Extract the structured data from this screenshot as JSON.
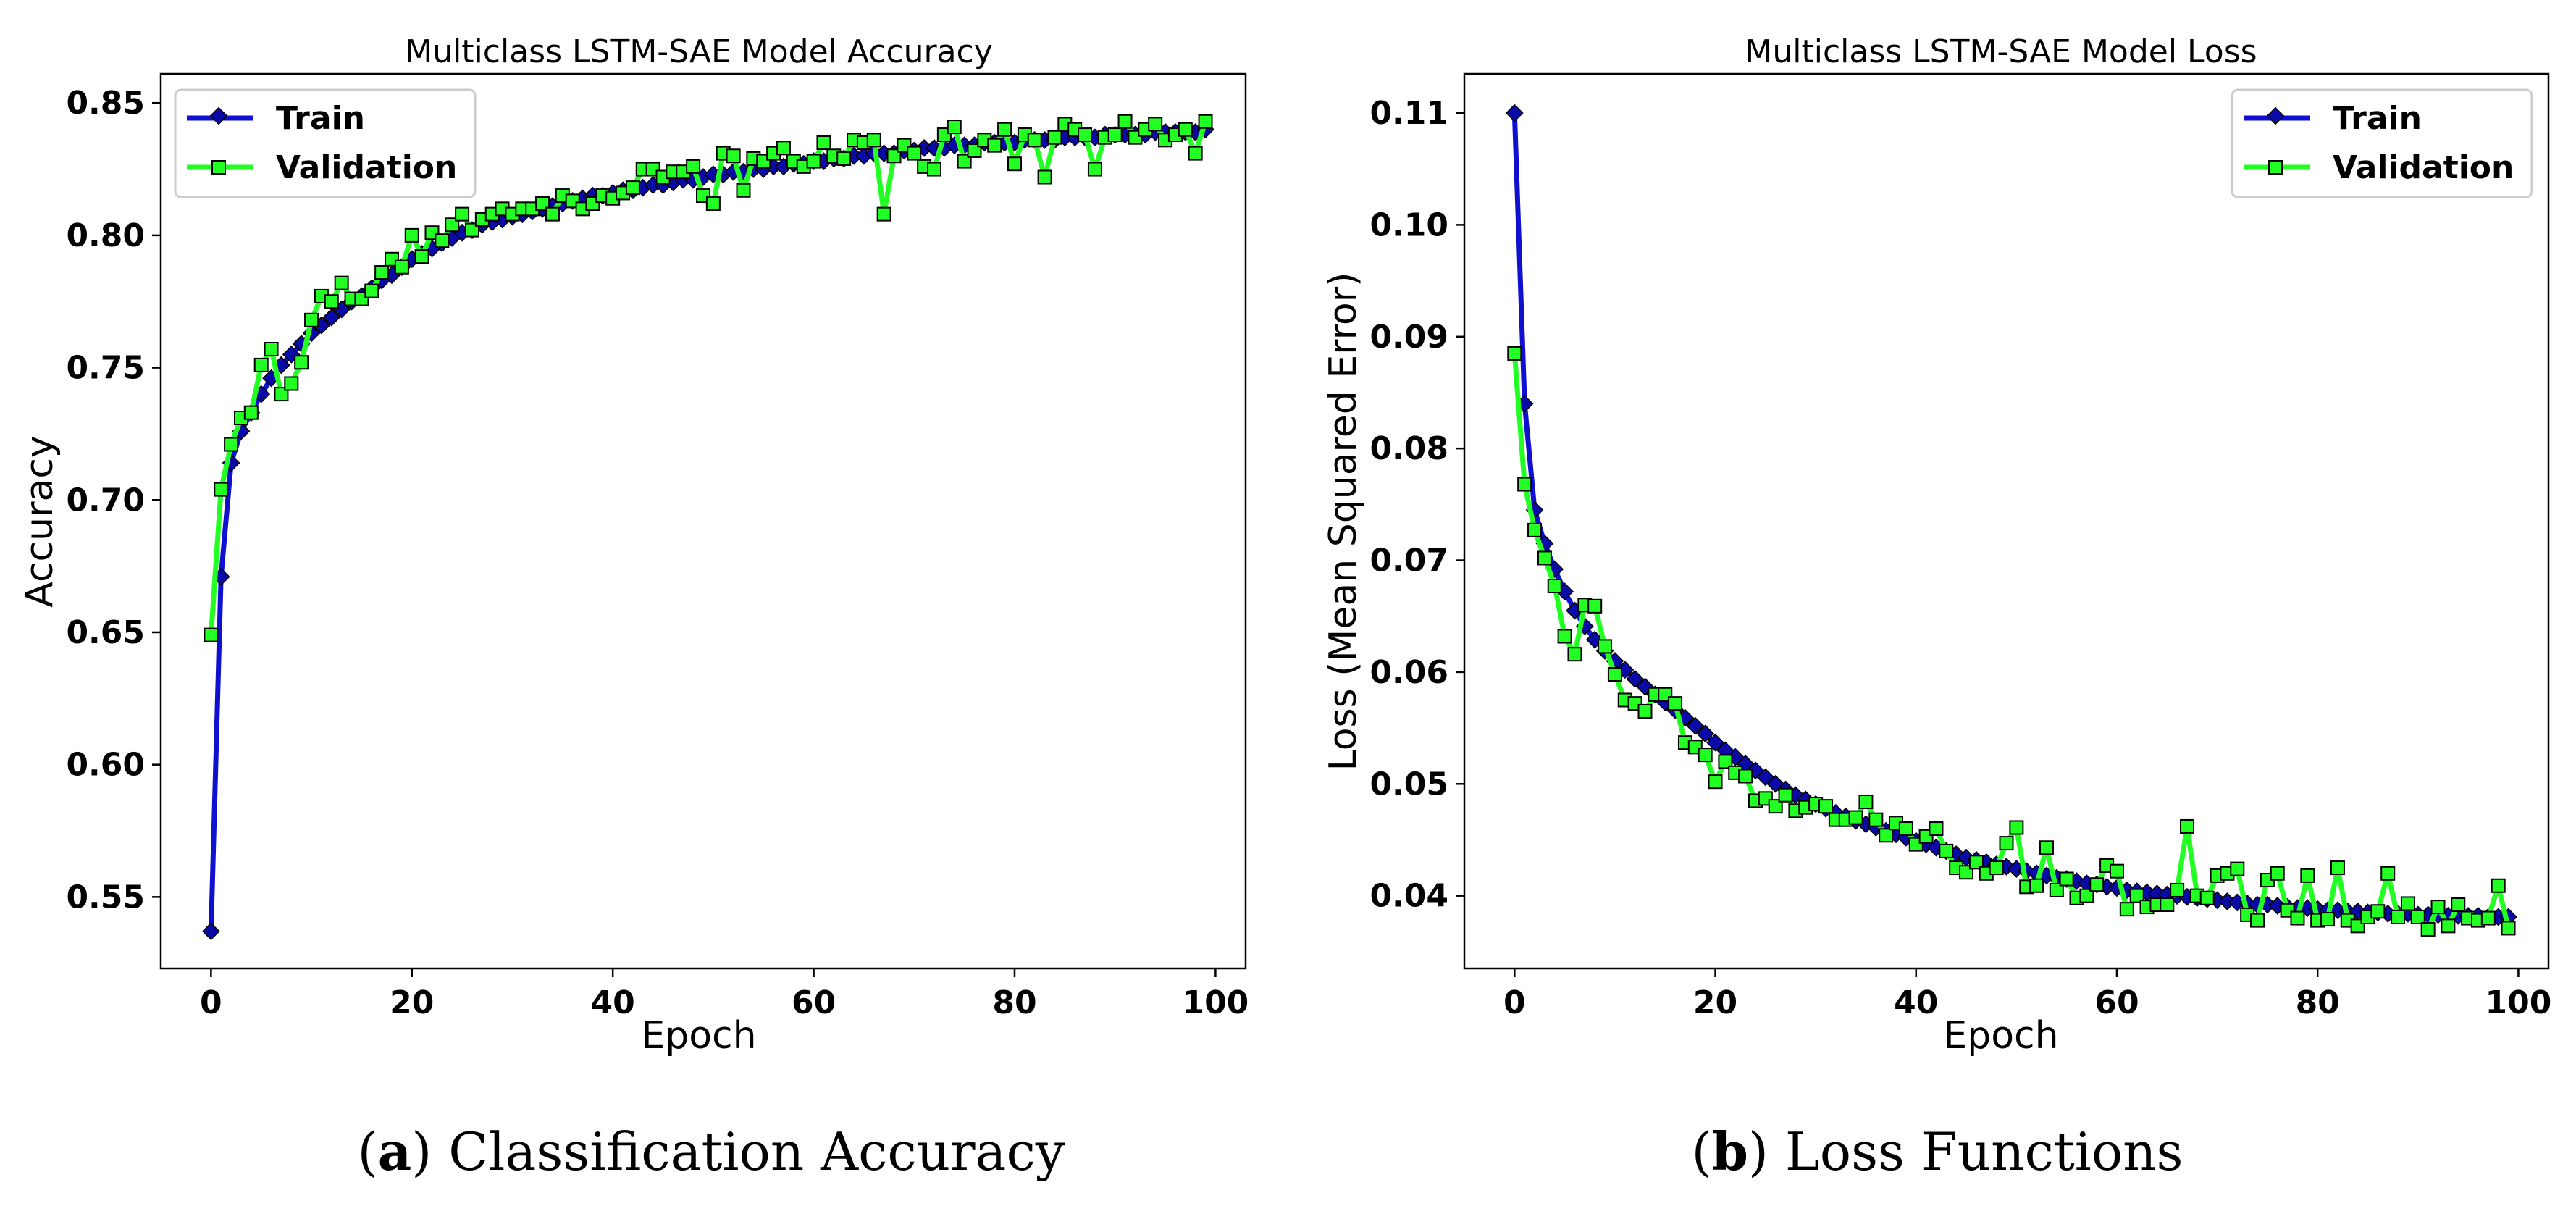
{
  "colors": {
    "train": "#1010d0",
    "train_marker": "#0a0aa8",
    "validation": "#22ff22",
    "validation_marker": "#22ff22",
    "marker_edge": "#000000"
  },
  "chart_data": [
    {
      "type": "line",
      "title": "Multiclass LSTM-SAE Model Accuracy",
      "xlabel": "Epoch",
      "ylabel": "Accuracy",
      "xlim": [
        -5,
        103
      ],
      "ylim": [
        0.523,
        0.861
      ],
      "xticks": [
        0,
        20,
        40,
        60,
        80,
        100
      ],
      "xtick_labels": [
        "0",
        "20",
        "40",
        "60",
        "80",
        "100"
      ],
      "yticks": [
        0.55,
        0.6,
        0.65,
        0.7,
        0.75,
        0.8,
        0.85
      ],
      "ytick_labels": [
        "0.55",
        "0.60",
        "0.65",
        "0.70",
        "0.75",
        "0.80",
        "0.85"
      ],
      "legend_position": "upper-left",
      "caption_letter": "a",
      "caption_text": "Classification Accuracy",
      "series": [
        {
          "name": "Train",
          "marker": "diamond",
          "values": [
            0.537,
            0.671,
            0.714,
            0.726,
            0.733,
            0.74,
            0.746,
            0.751,
            0.755,
            0.759,
            0.763,
            0.766,
            0.769,
            0.772,
            0.775,
            0.777,
            0.78,
            0.783,
            0.785,
            0.788,
            0.791,
            0.793,
            0.795,
            0.797,
            0.799,
            0.801,
            0.802,
            0.804,
            0.805,
            0.806,
            0.807,
            0.808,
            0.809,
            0.81,
            0.811,
            0.812,
            0.813,
            0.814,
            0.815,
            0.815,
            0.816,
            0.817,
            0.817,
            0.818,
            0.819,
            0.819,
            0.82,
            0.821,
            0.821,
            0.822,
            0.823,
            0.823,
            0.824,
            0.824,
            0.825,
            0.825,
            0.826,
            0.826,
            0.827,
            0.827,
            0.828,
            0.828,
            0.829,
            0.829,
            0.83,
            0.83,
            0.831,
            0.831,
            0.831,
            0.832,
            0.832,
            0.833,
            0.833,
            0.833,
            0.834,
            0.834,
            0.834,
            0.835,
            0.835,
            0.835,
            0.835,
            0.836,
            0.836,
            0.836,
            0.836,
            0.837,
            0.837,
            0.837,
            0.837,
            0.838,
            0.838,
            0.838,
            0.838,
            0.838,
            0.839,
            0.839,
            0.839,
            0.839,
            0.839,
            0.84
          ]
        },
        {
          "name": "Validation",
          "marker": "square",
          "values": [
            0.649,
            0.704,
            0.721,
            0.731,
            0.733,
            0.751,
            0.757,
            0.74,
            0.744,
            0.752,
            0.768,
            0.777,
            0.775,
            0.782,
            0.776,
            0.776,
            0.779,
            0.786,
            0.791,
            0.788,
            0.8,
            0.792,
            0.801,
            0.798,
            0.804,
            0.808,
            0.802,
            0.806,
            0.808,
            0.81,
            0.808,
            0.81,
            0.81,
            0.812,
            0.808,
            0.815,
            0.813,
            0.81,
            0.812,
            0.815,
            0.814,
            0.816,
            0.818,
            0.825,
            0.825,
            0.822,
            0.824,
            0.824,
            0.826,
            0.815,
            0.812,
            0.831,
            0.83,
            0.817,
            0.829,
            0.828,
            0.831,
            0.833,
            0.828,
            0.826,
            0.828,
            0.835,
            0.83,
            0.829,
            0.836,
            0.835,
            0.836,
            0.808,
            0.83,
            0.834,
            0.831,
            0.826,
            0.825,
            0.838,
            0.841,
            0.828,
            0.832,
            0.836,
            0.834,
            0.84,
            0.827,
            0.838,
            0.836,
            0.822,
            0.837,
            0.842,
            0.84,
            0.838,
            0.825,
            0.837,
            0.838,
            0.843,
            0.837,
            0.84,
            0.842,
            0.836,
            0.838,
            0.84,
            0.831,
            0.843
          ]
        }
      ]
    },
    {
      "type": "line",
      "title": "Multiclass LSTM-SAE Model Loss",
      "xlabel": "Epoch",
      "ylabel": "Loss (Mean Squared Error)",
      "xlim": [
        -5,
        103
      ],
      "ylim": [
        0.0335,
        0.1135
      ],
      "xticks": [
        0,
        20,
        40,
        60,
        80,
        100
      ],
      "xtick_labels": [
        "0",
        "20",
        "40",
        "60",
        "80",
        "100"
      ],
      "yticks": [
        0.04,
        0.05,
        0.06,
        0.07,
        0.08,
        0.09,
        0.1,
        0.11
      ],
      "ytick_labels": [
        "0.04",
        "0.05",
        "0.06",
        "0.07",
        "0.08",
        "0.09",
        "0.10",
        "0.11"
      ],
      "legend_position": "upper-right",
      "caption_letter": "b",
      "caption_text": "Loss Functions",
      "series": [
        {
          "name": "Train",
          "marker": "diamond",
          "values": [
            0.11,
            0.084,
            0.0745,
            0.0715,
            0.0692,
            0.0672,
            0.0655,
            0.0641,
            0.0629,
            0.0619,
            0.061,
            0.0602,
            0.0594,
            0.0587,
            0.058,
            0.0573,
            0.0566,
            0.0559,
            0.0552,
            0.0545,
            0.0537,
            0.053,
            0.0524,
            0.0518,
            0.0512,
            0.0506,
            0.05,
            0.0495,
            0.049,
            0.0486,
            0.0482,
            0.0478,
            0.0474,
            0.0471,
            0.0467,
            0.0464,
            0.0461,
            0.0458,
            0.0455,
            0.0452,
            0.0449,
            0.0446,
            0.0443,
            0.044,
            0.0437,
            0.0434,
            0.0432,
            0.043,
            0.0428,
            0.0426,
            0.0424,
            0.0422,
            0.042,
            0.0418,
            0.0416,
            0.0415,
            0.0413,
            0.0411,
            0.041,
            0.0408,
            0.0407,
            0.0405,
            0.0404,
            0.0403,
            0.0402,
            0.0401,
            0.04,
            0.0399,
            0.0398,
            0.0397,
            0.0396,
            0.0395,
            0.0394,
            0.0393,
            0.0392,
            0.0392,
            0.0391,
            0.039,
            0.0389,
            0.0389,
            0.0388,
            0.0387,
            0.0387,
            0.0386,
            0.0386,
            0.0385,
            0.0385,
            0.0384,
            0.0384,
            0.0384,
            0.0383,
            0.0383,
            0.0383,
            0.0382,
            0.0382,
            0.0382,
            0.0382,
            0.0381,
            0.0381,
            0.0381
          ]
        },
        {
          "name": "Validation",
          "marker": "square",
          "values": [
            0.0885,
            0.0768,
            0.0727,
            0.0702,
            0.0677,
            0.0632,
            0.0616,
            0.066,
            0.0659,
            0.0623,
            0.0598,
            0.0575,
            0.0572,
            0.0565,
            0.058,
            0.058,
            0.0572,
            0.0537,
            0.0533,
            0.0526,
            0.0502,
            0.052,
            0.051,
            0.0507,
            0.0485,
            0.0487,
            0.048,
            0.049,
            0.0476,
            0.0479,
            0.0482,
            0.048,
            0.0468,
            0.0468,
            0.047,
            0.0484,
            0.0468,
            0.0454,
            0.0465,
            0.046,
            0.0446,
            0.0453,
            0.046,
            0.044,
            0.0425,
            0.0421,
            0.043,
            0.042,
            0.0425,
            0.0447,
            0.0461,
            0.0408,
            0.0409,
            0.0443,
            0.0405,
            0.0415,
            0.0398,
            0.04,
            0.041,
            0.0427,
            0.0422,
            0.0388,
            0.04,
            0.039,
            0.0392,
            0.0392,
            0.0405,
            0.0462,
            0.04,
            0.0398,
            0.0418,
            0.042,
            0.0424,
            0.0383,
            0.0378,
            0.0414,
            0.042,
            0.0387,
            0.038,
            0.0418,
            0.0378,
            0.0379,
            0.0425,
            0.0378,
            0.0373,
            0.0381,
            0.0386,
            0.042,
            0.0381,
            0.0393,
            0.0381,
            0.037,
            0.039,
            0.0373,
            0.0392,
            0.038,
            0.0378,
            0.038,
            0.0409,
            0.0371
          ]
        }
      ]
    }
  ]
}
